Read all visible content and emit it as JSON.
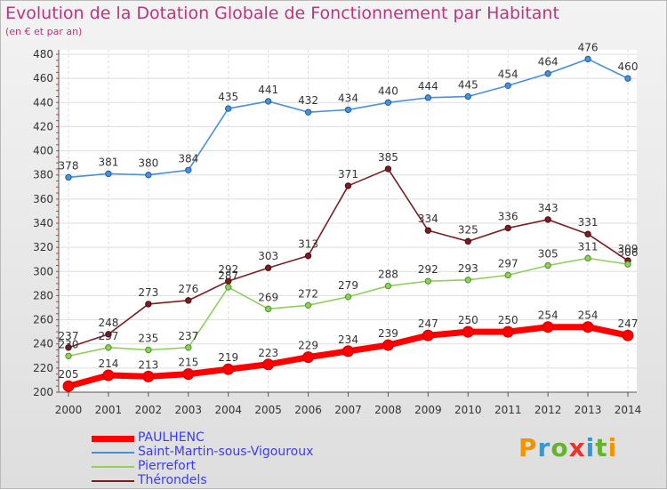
{
  "title": "Evolution de la Dotation Globale de Fonctionnement par Habitant",
  "subtitle": "(en € et par an)",
  "brand": {
    "text": "Proxiti",
    "letter_colors": [
      "#f29400",
      "#2f9ad8",
      "#66b22c",
      "#e8332a",
      "#2f9ad8",
      "#66b22c",
      "#f29400"
    ]
  },
  "chart_data": {
    "type": "line",
    "title": "Evolution de la Dotation Globale de Fonctionnement par Habitant",
    "subtitle": "(en € et par an)",
    "xlabel": "",
    "ylabel": "",
    "x": [
      "2000",
      "2001",
      "2002",
      "2003",
      "2004",
      "2005",
      "2006",
      "2007",
      "2008",
      "2009",
      "2010",
      "2011",
      "2012",
      "2013",
      "2014"
    ],
    "ylim": [
      200,
      480
    ],
    "yticks": [
      200,
      220,
      240,
      260,
      280,
      300,
      320,
      340,
      360,
      380,
      400,
      420,
      440,
      460,
      480
    ],
    "grid": true,
    "legend_position": "bottom-left",
    "series": [
      {
        "name": "Saint-Martin-sous-Vigouroux",
        "color": "#4a90d9",
        "values": [
          378,
          381,
          380,
          384,
          435,
          441,
          432,
          434,
          440,
          444,
          445,
          454,
          464,
          476,
          460
        ]
      },
      {
        "name": "Thérondels",
        "color": "#7a1e22",
        "values": [
          237,
          248,
          273,
          276,
          292,
          303,
          313,
          371,
          385,
          334,
          325,
          336,
          343,
          331,
          309
        ]
      },
      {
        "name": "Pierrefort",
        "color": "#8ed05a",
        "values": [
          230,
          237,
          235,
          237,
          287,
          269,
          272,
          279,
          288,
          292,
          293,
          297,
          305,
          311,
          306
        ]
      },
      {
        "name": "PAULHENC",
        "color": "#ff0000",
        "values": [
          205,
          214,
          213,
          215,
          219,
          223,
          229,
          234,
          239,
          247,
          250,
          250,
          254,
          254,
          247
        ]
      }
    ],
    "legend": [
      "PAULHENC",
      "Saint-Martin-sous-Vigouroux",
      "Pierrefort",
      "Thérondels"
    ]
  }
}
